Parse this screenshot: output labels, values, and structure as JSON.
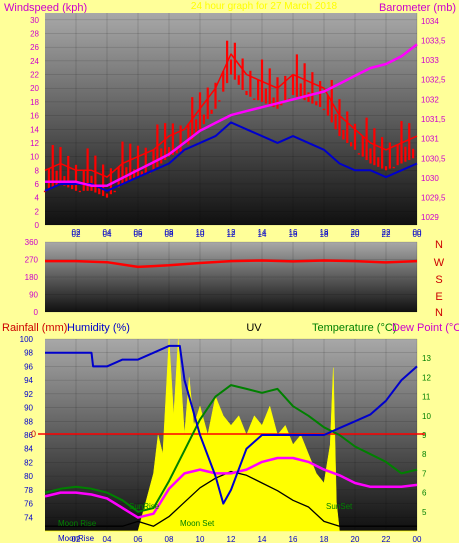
{
  "header": {
    "left_label": "Windspeed (kph)",
    "center_label": "24 hour graph for 27 March 2018",
    "right_label": "Barometer (mb)"
  },
  "colors": {
    "background": "#ffff99",
    "wind_gust": "#ff0000",
    "wind_avg": "#0000cc",
    "barometer": "#ff00ff",
    "direction": "#ff0000",
    "humidity": "#0000cc",
    "temperature": "#008000",
    "dewpoint": "#ff00ff",
    "uv": "#ffff00",
    "sun_moon": "#000000",
    "zero_line": "#ff0000",
    "axis_magenta": "#cc00cc",
    "axis_red": "#cc0000",
    "axis_blue": "#0000cc",
    "axis_green": "#008000"
  },
  "time_ticks": [
    "02",
    "04",
    "06",
    "08",
    "10",
    "12",
    "14",
    "16",
    "18",
    "20",
    "22",
    "00"
  ],
  "compass": [
    "N",
    "W",
    "S",
    "E",
    "N"
  ],
  "bottom_labels": {
    "rainfall": "Rainfall (mm)",
    "humidity": "Humidity (%)",
    "uv": "UV",
    "temperature": "Temperature (°C)",
    "dewpoint": "Dew Point (°C)",
    "moon_rise": "Moon Rise",
    "moon_set": "Moon Set",
    "sun_rise": "SunRise",
    "sun_set": "SunSet",
    "moon_rise_axis": "MoonRise",
    "zero": "0"
  },
  "chart_data": [
    {
      "type": "line",
      "panel": "wind_barometer",
      "x_unit": "hour",
      "xlim": [
        0,
        24
      ],
      "ylim_left": [
        0,
        31
      ],
      "left_ticks": [
        0,
        2,
        4,
        6,
        8,
        10,
        12,
        14,
        16,
        18,
        20,
        22,
        24,
        26,
        28,
        30
      ],
      "ylim_right": [
        1028.8,
        1034.2
      ],
      "right_ticks": [
        "1029",
        "1029,5",
        "1030",
        "1030,5",
        "1031",
        "1031,5",
        "1032",
        "1032,5",
        "1033",
        "1033,5",
        "1034"
      ],
      "series": [
        {
          "key": "gust",
          "axis": "left",
          "x": [
            0,
            1,
            2,
            3,
            4,
            5,
            6,
            7,
            8,
            9,
            10,
            11,
            12,
            13,
            14,
            15,
            16,
            17,
            18,
            19,
            20,
            21,
            22,
            23,
            24
          ],
          "values": [
            8,
            9,
            8,
            8,
            7,
            9,
            10,
            11,
            13,
            14,
            17,
            20,
            25,
            22,
            21,
            20,
            22,
            21,
            20,
            16,
            14,
            12,
            11,
            12,
            13
          ]
        },
        {
          "key": "average",
          "axis": "left",
          "x": [
            0,
            1,
            2,
            3,
            4,
            5,
            6,
            7,
            8,
            9,
            10,
            11,
            12,
            13,
            14,
            15,
            16,
            17,
            18,
            19,
            20,
            21,
            22,
            23,
            24
          ],
          "values": [
            5,
            6,
            6,
            6,
            5,
            6,
            7,
            8,
            9,
            11,
            12,
            13,
            15,
            14,
            13,
            12,
            13,
            12,
            11,
            9,
            8,
            8,
            7,
            8,
            9
          ]
        },
        {
          "key": "barometer",
          "axis": "right",
          "x": [
            0,
            1,
            2,
            3,
            4,
            5,
            6,
            7,
            8,
            9,
            10,
            11,
            12,
            13,
            14,
            15,
            16,
            17,
            18,
            19,
            20,
            21,
            22,
            23,
            24
          ],
          "values": [
            1029.9,
            1029.9,
            1029.9,
            1029.8,
            1029.8,
            1030.0,
            1030.2,
            1030.4,
            1030.6,
            1030.9,
            1031.2,
            1031.4,
            1031.6,
            1031.7,
            1031.8,
            1031.9,
            1032.0,
            1032.1,
            1032.2,
            1032.4,
            1032.6,
            1032.8,
            1032.9,
            1033.1,
            1033.4
          ]
        }
      ]
    },
    {
      "type": "line",
      "panel": "wind_direction",
      "x_unit": "hour",
      "xlim": [
        0,
        24
      ],
      "ylim": [
        0,
        360
      ],
      "left_ticks": [
        0,
        90,
        180,
        270,
        360
      ],
      "series": [
        {
          "key": "direction",
          "x": [
            0,
            2,
            4,
            6,
            7,
            8,
            10,
            12,
            14,
            16,
            18,
            20,
            22,
            24
          ],
          "values": [
            262,
            262,
            256,
            232,
            236,
            240,
            252,
            262,
            265,
            260,
            265,
            262,
            255,
            262
          ]
        }
      ]
    },
    {
      "type": "line",
      "panel": "climate",
      "x_unit": "hour",
      "xlim": [
        0,
        24
      ],
      "ylim_humidity": [
        72,
        100
      ],
      "humidity_ticks": [
        74,
        76,
        78,
        80,
        82,
        84,
        86,
        88,
        90,
        92,
        94,
        96,
        98,
        100
      ],
      "ylim_temp": [
        4,
        14
      ],
      "temp_ticks": [
        5,
        6,
        7,
        8,
        9,
        10,
        11,
        12,
        13
      ],
      "series": [
        {
          "key": "humidity",
          "axis": "humidity",
          "x": [
            0,
            2,
            3,
            3.1,
            4,
            5,
            6,
            8,
            8.7,
            9,
            10,
            11,
            11.5,
            12,
            13,
            14,
            15,
            17,
            18,
            19,
            20,
            21,
            22,
            23,
            24
          ],
          "values": [
            98,
            98,
            98,
            96,
            96,
            97,
            97,
            99,
            99,
            94,
            86,
            80,
            76,
            78,
            84,
            86,
            86,
            86,
            86,
            87,
            88,
            89,
            91,
            94,
            96
          ]
        },
        {
          "key": "temperature",
          "axis": "temp",
          "x": [
            0,
            1,
            2,
            3,
            4,
            5,
            6,
            7,
            8,
            9,
            10,
            11,
            12,
            13,
            14,
            15,
            16,
            17,
            18,
            19,
            20,
            21,
            22,
            23,
            24
          ],
          "values": [
            6.0,
            6.2,
            6.3,
            6.2,
            6.0,
            5.6,
            5.0,
            5.2,
            6.6,
            8.2,
            9.8,
            11.0,
            11.6,
            11.4,
            11.2,
            11.4,
            10.5,
            10.0,
            9.4,
            9.0,
            8.4,
            8.0,
            7.6,
            7.0,
            7.2
          ]
        },
        {
          "key": "dewpoint",
          "axis": "temp",
          "x": [
            0,
            1,
            2,
            3,
            4,
            5,
            6,
            7,
            8,
            9,
            10,
            11,
            12,
            13,
            14,
            15,
            16,
            17,
            18,
            19,
            20,
            21,
            22,
            23,
            24
          ],
          "values": [
            5.8,
            6.0,
            6.0,
            5.9,
            5.7,
            5.2,
            4.7,
            4.9,
            6.2,
            7.0,
            7.2,
            7.0,
            7.0,
            7.2,
            7.6,
            7.8,
            7.8,
            7.6,
            7.2,
            6.9,
            6.5,
            6.3,
            6.3,
            6.3,
            6.4
          ]
        },
        {
          "key": "uv",
          "axis": "uv",
          "x": [
            0,
            6,
            6.5,
            7,
            7.3,
            7.6,
            8,
            8.3,
            8.6,
            9,
            9.3,
            9.6,
            10,
            10.5,
            11,
            11.5,
            12,
            12.5,
            13,
            13.5,
            14,
            14.5,
            15,
            15.5,
            16,
            16.5,
            17,
            17.5,
            18,
            18.4,
            18.6,
            18.8,
            19,
            24
          ],
          "values": [
            0,
            0,
            0.3,
            0.6,
            1.0,
            0.8,
            2.0,
            1.2,
            2.0,
            1.0,
            1.6,
            1.1,
            1.3,
            1.0,
            1.4,
            1.2,
            1.1,
            1.2,
            1.0,
            1.2,
            1.1,
            1.3,
            1.0,
            1.1,
            0.9,
            1.0,
            0.8,
            0.6,
            0.5,
            0.9,
            1.7,
            0.3,
            0,
            0
          ]
        },
        {
          "key": "sun_moon",
          "axis": "uv",
          "x": [
            0,
            5,
            6,
            7,
            8,
            9,
            10,
            11,
            12,
            13,
            14,
            15,
            16,
            17,
            18,
            19,
            24
          ],
          "values": [
            0.05,
            0.05,
            0.1,
            0.05,
            0.15,
            0.3,
            0.45,
            0.55,
            0.62,
            0.58,
            0.5,
            0.42,
            0.32,
            0.25,
            0.1,
            0.05,
            0.05
          ]
        }
      ]
    }
  ]
}
